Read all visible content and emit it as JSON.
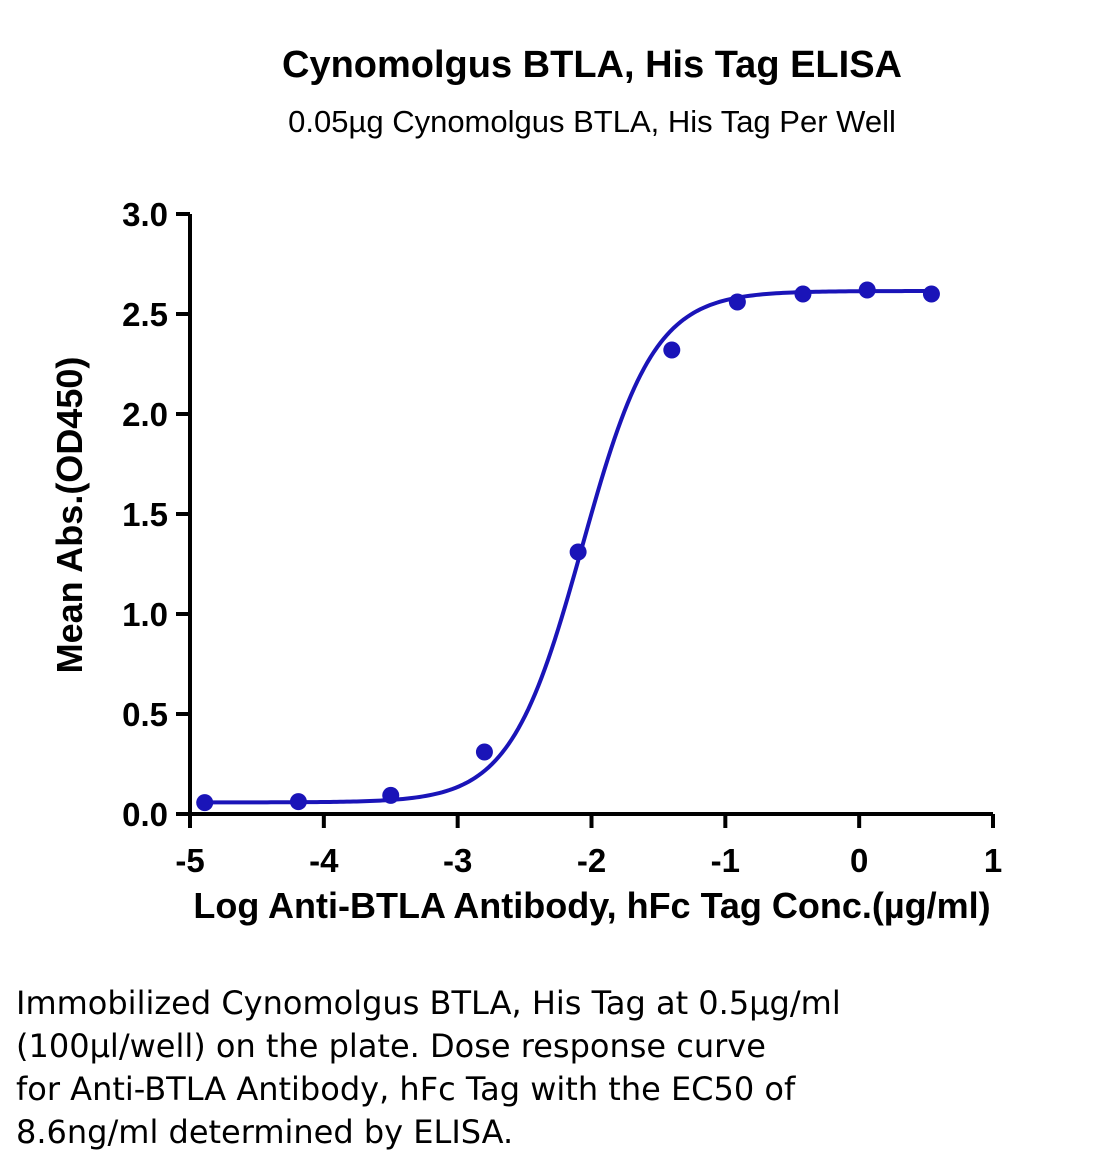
{
  "chart_data": {
    "type": "scatter",
    "title": "Cynomolgus BTLA, His Tag ELISA",
    "subtitle": "0.05µg Cynomolgus BTLA, His Tag Per Well",
    "xlabel": "Log Anti-BTLA Antibody, hFc Tag Conc.(µg/ml)",
    "ylabel": "Mean Abs.(OD450)",
    "xlim": [
      -5,
      1
    ],
    "ylim": [
      0,
      3.0
    ],
    "x_ticks": [
      "-5",
      "-4",
      "-3",
      "-2",
      "-1",
      "0",
      "1"
    ],
    "y_ticks": [
      "0.0",
      "0.5",
      "1.0",
      "1.5",
      "2.0",
      "2.5",
      "3.0"
    ],
    "grid": false,
    "series": [
      {
        "x": [
          -4.89,
          -4.19,
          -3.5,
          -2.8,
          -2.1,
          -1.4,
          -0.91,
          -0.42,
          0.06,
          0.54
        ],
        "y": [
          0.057,
          0.062,
          0.093,
          0.31,
          1.31,
          2.32,
          2.56,
          2.6,
          2.62,
          2.6
        ],
        "color": "#1a14b8",
        "fit": "4PL sigmoid curve"
      }
    ]
  },
  "caption": {
    "lines": [
      "Immobilized Cynomolgus BTLA, His Tag at 0.5µg/ml",
      "(100µl/well) on the plate. Dose response curve",
      "for Anti-BTLA Antibody, hFc Tag with the EC50 of",
      "8.6ng/ml determined by ELISA."
    ]
  }
}
